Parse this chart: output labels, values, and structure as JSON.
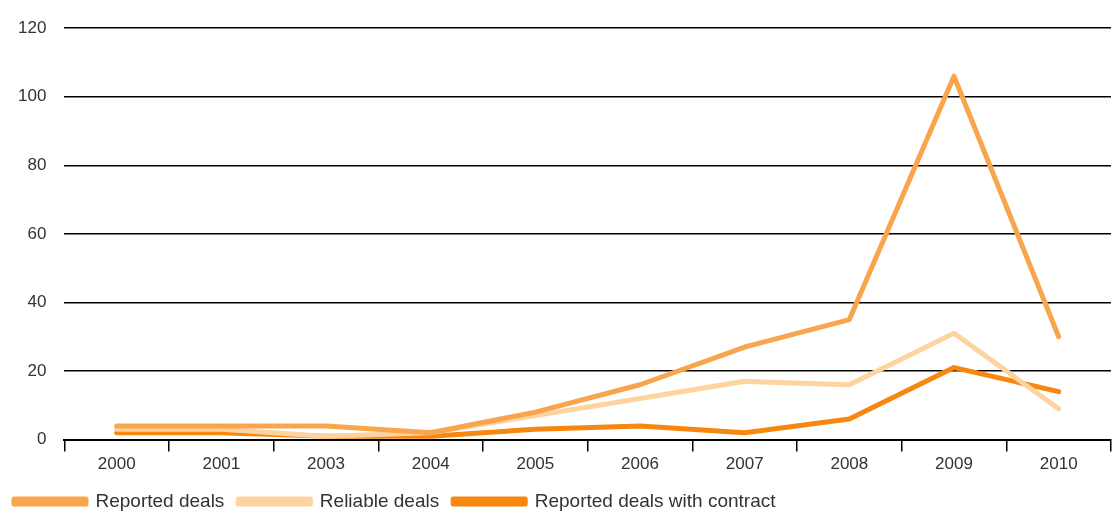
{
  "chart_data": {
    "type": "line",
    "categories": [
      "2000",
      "2001",
      "2003",
      "2004",
      "2005",
      "2006",
      "2007",
      "2008",
      "2009",
      "2010"
    ],
    "series": [
      {
        "name": "Reported deals",
        "color": "#f9a54d",
        "values": [
          4,
          4,
          4,
          2,
          8,
          16,
          27,
          35,
          106,
          30
        ]
      },
      {
        "name": "Reliable deals",
        "color": "#fdd4a0",
        "values": [
          3,
          3,
          1,
          2,
          7,
          12,
          17,
          16,
          31,
          9
        ]
      },
      {
        "name": "Reported deals with contract",
        "color": "#f7870f",
        "values": [
          2,
          2,
          1,
          1,
          3,
          4,
          2,
          6,
          21,
          14
        ]
      }
    ],
    "ylim": [
      0,
      120
    ],
    "yticks": [
      0,
      20,
      40,
      60,
      80,
      100,
      120
    ],
    "grid": "y",
    "legend": "bottom left",
    "marker": "none",
    "line_style": "solid"
  }
}
